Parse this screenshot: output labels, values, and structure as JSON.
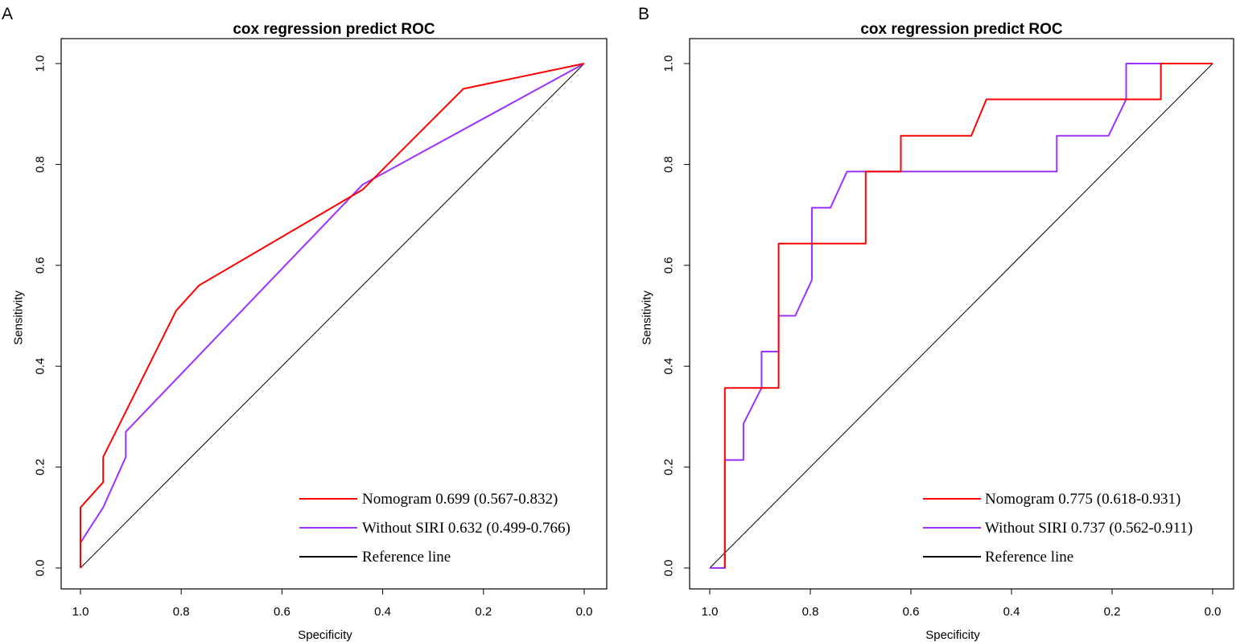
{
  "chart_data": [
    {
      "type": "line",
      "panel_label": "A",
      "title": "cox regression predict ROC",
      "xlabel": "Specificity",
      "ylabel": "Sensitivity",
      "xlim": [
        1.0,
        0.0
      ],
      "ylim": [
        0.0,
        1.0
      ],
      "x_ticks": [
        "1.0",
        "0.8",
        "0.6",
        "0.4",
        "0.2",
        "0.0"
      ],
      "y_ticks": [
        "0.0",
        "0.2",
        "0.4",
        "0.6",
        "0.8",
        "1.0"
      ],
      "legend_position": "bottom-right",
      "series": [
        {
          "name": "Nomogram",
          "legend_label": "Nomogram 0.699 (0.567-0.832)",
          "color": "#ff0000",
          "points": [
            [
              1.0,
              0.0
            ],
            [
              1.0,
              0.12
            ],
            [
              0.955,
              0.17
            ],
            [
              0.955,
              0.22
            ],
            [
              0.81,
              0.51
            ],
            [
              0.765,
              0.56
            ],
            [
              0.44,
              0.75
            ],
            [
              0.4,
              0.79
            ],
            [
              0.24,
              0.95
            ],
            [
              0.0,
              1.0
            ]
          ]
        },
        {
          "name": "Without SIRI",
          "legend_label": "Without SIRI 0.632 (0.499-0.766)",
          "color": "#9b30ff",
          "points": [
            [
              1.0,
              0.0
            ],
            [
              1.0,
              0.05
            ],
            [
              0.955,
              0.12
            ],
            [
              0.91,
              0.22
            ],
            [
              0.91,
              0.27
            ],
            [
              0.44,
              0.76
            ],
            [
              0.0,
              1.0
            ]
          ]
        },
        {
          "name": "Reference line",
          "legend_label": "Reference line",
          "color": "#000000",
          "points": [
            [
              1.0,
              0.0
            ],
            [
              0.0,
              1.0
            ]
          ]
        }
      ]
    },
    {
      "type": "line",
      "panel_label": "B",
      "title": "cox regression predict ROC",
      "xlabel": "Specificity",
      "ylabel": "Sensitivity",
      "xlim": [
        1.0,
        0.0
      ],
      "ylim": [
        0.0,
        1.0
      ],
      "x_ticks": [
        "1.0",
        "0.8",
        "0.6",
        "0.4",
        "0.2",
        "0.0"
      ],
      "y_ticks": [
        "0.0",
        "0.2",
        "0.4",
        "0.6",
        "0.8",
        "1.0"
      ],
      "legend_position": "bottom-right",
      "series": [
        {
          "name": "Nomogram",
          "legend_label": "Nomogram 0.775 (0.618-0.931)",
          "color": "#ff0000",
          "points": [
            [
              0.97,
              0.0
            ],
            [
              0.97,
              0.357
            ],
            [
              0.863,
              0.357
            ],
            [
              0.863,
              0.643
            ],
            [
              0.69,
              0.643
            ],
            [
              0.69,
              0.786
            ],
            [
              0.62,
              0.786
            ],
            [
              0.62,
              0.857
            ],
            [
              0.48,
              0.857
            ],
            [
              0.45,
              0.929
            ],
            [
              0.103,
              0.929
            ],
            [
              0.103,
              1.0
            ],
            [
              0.0,
              1.0
            ]
          ]
        },
        {
          "name": "Without SIRI",
          "legend_label": "Without SIRI 0.737 (0.562-0.911)",
          "color": "#9b30ff",
          "points": [
            [
              1.0,
              0.0
            ],
            [
              0.97,
              0.0
            ],
            [
              0.97,
              0.214
            ],
            [
              0.933,
              0.214
            ],
            [
              0.933,
              0.286
            ],
            [
              0.897,
              0.357
            ],
            [
              0.897,
              0.429
            ],
            [
              0.863,
              0.429
            ],
            [
              0.863,
              0.5
            ],
            [
              0.83,
              0.5
            ],
            [
              0.797,
              0.571
            ],
            [
              0.797,
              0.714
            ],
            [
              0.76,
              0.714
            ],
            [
              0.727,
              0.786
            ],
            [
              0.31,
              0.786
            ],
            [
              0.31,
              0.857
            ],
            [
              0.207,
              0.857
            ],
            [
              0.172,
              0.929
            ],
            [
              0.172,
              1.0
            ],
            [
              0.0,
              1.0
            ]
          ]
        },
        {
          "name": "Reference line",
          "legend_label": "Reference line",
          "color": "#000000",
          "points": [
            [
              1.0,
              0.0
            ],
            [
              0.0,
              1.0
            ]
          ]
        }
      ]
    }
  ]
}
